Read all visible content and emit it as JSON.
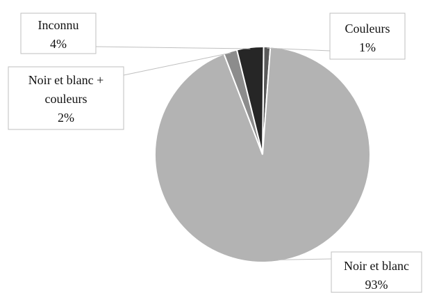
{
  "chart_data": {
    "type": "pie",
    "title": "",
    "legend": "none",
    "slices": [
      {
        "label": "Couleurs",
        "value": 1,
        "value_label": "1%",
        "color": "#595959"
      },
      {
        "label": "Noir et blanc",
        "value": 93,
        "value_label": "93%",
        "color": "#b3b3b3"
      },
      {
        "label": "Noir et blanc +",
        "label_line2": "couleurs",
        "value": 2,
        "value_label": "2%",
        "color": "#8c8c8c"
      },
      {
        "label": "Inconnu",
        "value": 4,
        "value_label": "4%",
        "color": "#262626"
      }
    ]
  }
}
